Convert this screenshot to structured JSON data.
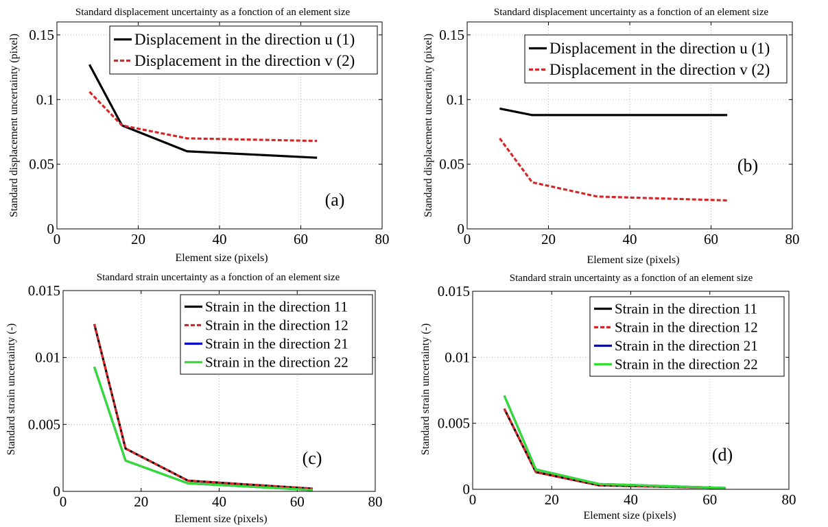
{
  "chart_data": [
    {
      "type": "line",
      "title": "Standard displacement uncertainty as a fonction of an element size",
      "xlabel": "Element size (pixels)",
      "ylabel": "Standard displacement uncertainty (pixel)",
      "xlim": [
        0,
        80
      ],
      "ylim": [
        0,
        0.16
      ],
      "xticks": [
        0,
        20,
        40,
        60,
        80
      ],
      "yticks": [
        0,
        0.05,
        0.1,
        0.15
      ],
      "xtick_labels": [
        "0",
        "20",
        "40",
        "60",
        "80"
      ],
      "ytick_labels": [
        "0",
        "0.05",
        "0.1",
        "0.15"
      ],
      "grid": true,
      "legend_position": "top-right",
      "panel_label": "(a)",
      "x": [
        8,
        16,
        32,
        64
      ],
      "series": [
        {
          "name": "Displacement in the direction u (1)",
          "color": "#000000",
          "dash": "solid",
          "values": [
            0.127,
            0.08,
            0.06,
            0.055
          ]
        },
        {
          "name": "Displacement in the direction v (2)",
          "color": "#d62728",
          "dash": "dashed",
          "values": [
            0.106,
            0.08,
            0.07,
            0.068
          ]
        }
      ]
    },
    {
      "type": "line",
      "title": "Standard displacement uncertainty as a fonction of an element size",
      "xlabel": "Element size (pixels)",
      "ylabel": "Standard displacement uncertainty (pixel)",
      "xlim": [
        0,
        80
      ],
      "ylim": [
        0,
        0.16
      ],
      "xticks": [
        0,
        20,
        40,
        60,
        80
      ],
      "yticks": [
        0,
        0.05,
        0.1,
        0.15
      ],
      "xtick_labels": [
        "0",
        "20",
        "40",
        "60",
        "80"
      ],
      "ytick_labels": [
        "0",
        "0.05",
        "0.1",
        "0.15"
      ],
      "grid": true,
      "legend_position": "top-right",
      "panel_label": "(b)",
      "x": [
        8,
        16,
        32,
        64
      ],
      "series": [
        {
          "name": "Displacement in the direction u (1)",
          "color": "#000000",
          "dash": "solid",
          "values": [
            0.093,
            0.088,
            0.088,
            0.088
          ]
        },
        {
          "name": "Displacement in the direction v (2)",
          "color": "#d62728",
          "dash": "dashed",
          "values": [
            0.07,
            0.036,
            0.025,
            0.022
          ]
        }
      ]
    },
    {
      "type": "line",
      "title": "Standard strain uncertainty as a fonction of an element size",
      "xlabel": "Element size (pixels)",
      "ylabel": "Standard strain uncertainty (-)",
      "xlim": [
        0,
        80
      ],
      "ylim": [
        0,
        0.015
      ],
      "xticks": [
        0,
        20,
        40,
        60,
        80
      ],
      "yticks": [
        0,
        0.005,
        0.01,
        0.015
      ],
      "xtick_labels": [
        "0",
        "20",
        "40",
        "60",
        "80"
      ],
      "ytick_labels": [
        "0",
        "0.005",
        "0.01",
        "0.015"
      ],
      "grid": true,
      "legend_position": "top-right",
      "panel_label": "(c)",
      "x": [
        8,
        16,
        32,
        64
      ],
      "series": [
        {
          "name": "Strain in the direction 11",
          "color": "#000000",
          "dash": "solid",
          "values": [
            0.0125,
            0.0032,
            0.0008,
            0.0002
          ]
        },
        {
          "name": "Strain in the direction 12",
          "color": "#d62728",
          "dash": "dashed",
          "values": [
            0.0125,
            0.0032,
            0.0008,
            0.0002
          ]
        },
        {
          "name": "Strain in the direction 21",
          "color": "#0000cc",
          "dash": "solid",
          "values": [
            0.0093,
            0.0023,
            0.0006,
            0.0001
          ]
        },
        {
          "name": "Strain in the direction 22",
          "color": "#33dd33",
          "dash": "solid",
          "values": [
            0.0093,
            0.0023,
            0.0006,
            0.0001
          ]
        }
      ]
    },
    {
      "type": "line",
      "title": "Standard strain uncertainty as a fonction of an element size",
      "xlabel": "Element size (pixels)",
      "ylabel": "Standard strain uncertainty (-)",
      "xlim": [
        0,
        80
      ],
      "ylim": [
        0,
        0.015
      ],
      "xticks": [
        0,
        20,
        40,
        60,
        80
      ],
      "yticks": [
        0,
        0.005,
        0.01,
        0.015
      ],
      "xtick_labels": [
        "0",
        "20",
        "40",
        "60",
        "80"
      ],
      "ytick_labels": [
        "0",
        "0.005",
        "0.01",
        "0.015"
      ],
      "grid": true,
      "legend_position": "top-right",
      "panel_label": "(d)",
      "x": [
        8,
        16,
        32,
        64
      ],
      "series": [
        {
          "name": "Strain in the direction 11",
          "color": "#000000",
          "dash": "solid",
          "values": [
            0.0061,
            0.0013,
            0.0003,
            0.0001
          ]
        },
        {
          "name": "Strain in the direction 12",
          "color": "#d62728",
          "dash": "dashed",
          "values": [
            0.0061,
            0.0013,
            0.0003,
            0.0001
          ]
        },
        {
          "name": "Strain in the direction 21",
          "color": "#0000cc",
          "dash": "solid",
          "values": [
            0.0071,
            0.0015,
            0.0004,
            0.0001
          ]
        },
        {
          "name": "Strain in the direction 22",
          "color": "#33dd33",
          "dash": "solid",
          "values": [
            0.0071,
            0.0015,
            0.0004,
            0.0001
          ]
        }
      ]
    }
  ]
}
